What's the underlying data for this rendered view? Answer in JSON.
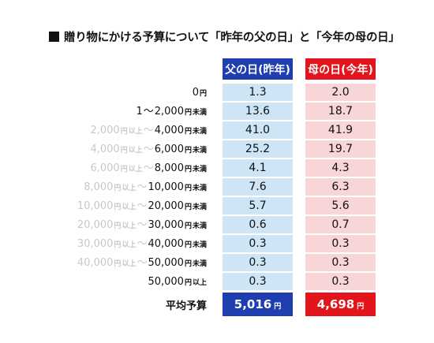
{
  "title": "贈り物にかける予算について「昨年の父の日」と「今年の母の日」",
  "units": {
    "yen": "円",
    "or_more": "以上",
    "under": "未満",
    "tilde": "〜"
  },
  "headers": {
    "father": "父の日(昨年)",
    "mother": "母の日(今年)"
  },
  "average": {
    "label": "平均予算",
    "father": "5,016",
    "mother": "4,698"
  },
  "colors": {
    "father_header": "#1f3fb0",
    "mother_header": "#e3141c",
    "father_cell": "#cde5f4",
    "mother_cell": "#f8d5d6",
    "faded_label": "#c8c8c8"
  },
  "chart_data": {
    "type": "table",
    "title": "贈り物にかける予算について「昨年の父の日」と「今年の母の日」",
    "columns": [
      "父の日(昨年)",
      "母の日(今年)"
    ],
    "rows": [
      {
        "low": "0",
        "high": "",
        "father": "1.3",
        "mother": "2.0",
        "faded": false
      },
      {
        "low": "1",
        "high": "2,000",
        "father": "13.6",
        "mother": "18.7",
        "faded": false
      },
      {
        "low": "2,000",
        "high": "4,000",
        "father": "41.0",
        "mother": "41.9",
        "faded": true
      },
      {
        "low": "4,000",
        "high": "6,000",
        "father": "25.2",
        "mother": "19.7",
        "faded": true
      },
      {
        "low": "6,000",
        "high": "8,000",
        "father": "4.1",
        "mother": "4.3",
        "faded": true
      },
      {
        "low": "8,000",
        "high": "10,000",
        "father": "7.6",
        "mother": "6.3",
        "faded": true
      },
      {
        "low": "10,000",
        "high": "20,000",
        "father": "5.7",
        "mother": "5.6",
        "faded": true
      },
      {
        "low": "20,000",
        "high": "30,000",
        "father": "0.6",
        "mother": "0.7",
        "faded": true
      },
      {
        "low": "30,000",
        "high": "40,000",
        "father": "0.3",
        "mother": "0.3",
        "faded": true
      },
      {
        "low": "40,000",
        "high": "50,000",
        "father": "0.3",
        "mother": "0.3",
        "faded": true
      },
      {
        "low": "50,000",
        "high": "",
        "father": "0.3",
        "mother": "0.3",
        "faded": false
      }
    ]
  }
}
